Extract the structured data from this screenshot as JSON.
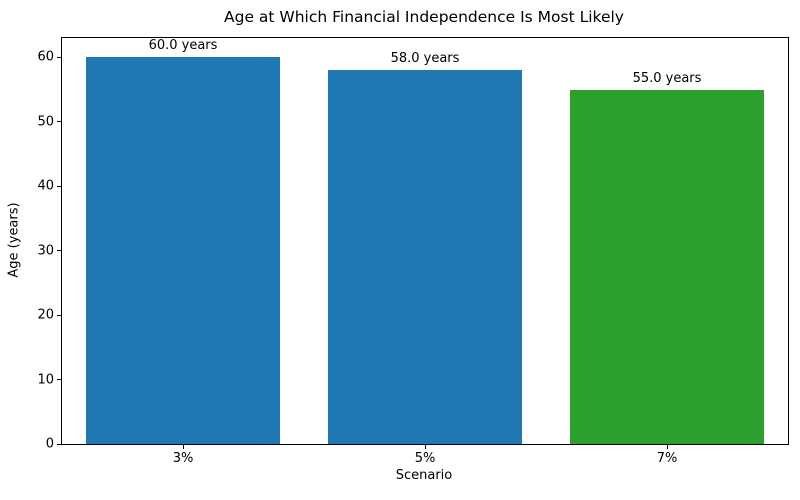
{
  "chart_data": {
    "type": "bar",
    "title": "Age at Which Financial Independence Is Most Likely",
    "xlabel": "Scenario",
    "ylabel": "Age (years)",
    "categories": [
      "3%",
      "5%",
      "7%"
    ],
    "values": [
      60.0,
      58.0,
      55.0
    ],
    "bar_labels": [
      "60.0 years",
      "58.0 years",
      "55.0 years"
    ],
    "bar_colors": [
      "#1f77b4",
      "#1f77b4",
      "#2ca02c"
    ],
    "yticks": [
      0,
      10,
      20,
      30,
      40,
      50,
      60
    ],
    "ylim": [
      0,
      63
    ],
    "bar_width_fraction": 0.8,
    "grid": false,
    "legend": null
  }
}
